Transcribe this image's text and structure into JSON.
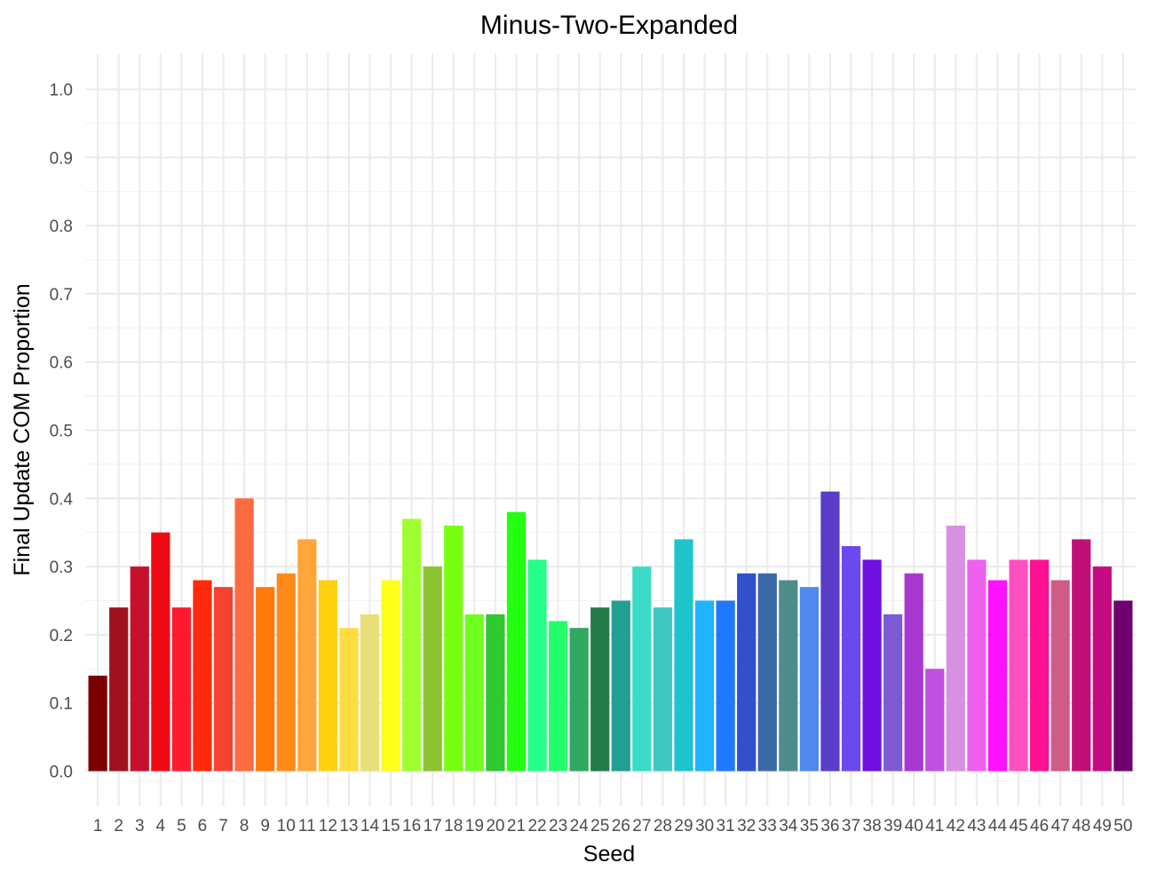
{
  "chart_data": {
    "type": "bar",
    "title": "Minus-Two-Expanded",
    "xlabel": "Seed",
    "ylabel": "Final Update COM Proportion",
    "ylim": [
      -0.04,
      1.04
    ],
    "yticks": [
      "0.0",
      "0.1",
      "0.2",
      "0.3",
      "0.4",
      "0.5",
      "0.6",
      "0.7",
      "0.8",
      "0.9",
      "1.0"
    ],
    "grid": true,
    "legend": "none",
    "categories": [
      "1",
      "2",
      "3",
      "4",
      "5",
      "6",
      "7",
      "8",
      "9",
      "10",
      "11",
      "12",
      "13",
      "14",
      "15",
      "16",
      "17",
      "18",
      "19",
      "20",
      "21",
      "22",
      "23",
      "24",
      "25",
      "26",
      "27",
      "28",
      "29",
      "30",
      "31",
      "32",
      "33",
      "34",
      "35",
      "36",
      "37",
      "38",
      "39",
      "40",
      "41",
      "42",
      "43",
      "44",
      "45",
      "46",
      "47",
      "48",
      "49",
      "50"
    ],
    "values": [
      0.14,
      0.24,
      0.3,
      0.35,
      0.24,
      0.28,
      0.27,
      0.4,
      0.27,
      0.29,
      0.34,
      0.28,
      0.21,
      0.23,
      0.28,
      0.37,
      0.3,
      0.36,
      0.23,
      0.23,
      0.38,
      0.31,
      0.22,
      0.21,
      0.24,
      0.25,
      0.3,
      0.24,
      0.34,
      0.25,
      0.25,
      0.29,
      0.29,
      0.28,
      0.27,
      0.41,
      0.33,
      0.31,
      0.23,
      0.29,
      0.15,
      0.36,
      0.31,
      0.28,
      0.31,
      0.31,
      0.28,
      0.34,
      0.3,
      0.25
    ],
    "colors": [
      "#7a0000",
      "#a0111f",
      "#c8102e",
      "#f00a14",
      "#ff1a2e",
      "#ff2a0a",
      "#f74230",
      "#ff6a40",
      "#ff7a0a",
      "#ff8a1a",
      "#ffa53a",
      "#ffd10f",
      "#ffdc40",
      "#eae07a",
      "#ffff1a",
      "#a0ff30",
      "#8cc431",
      "#78ff10",
      "#6fff20",
      "#30c830",
      "#22ff10",
      "#24ff8a",
      "#22ff6a",
      "#30a860",
      "#257a4a",
      "#20a090",
      "#3adcc8",
      "#40c8c0",
      "#1ec4cc",
      "#1eb4ff",
      "#2078ff",
      "#3050cc",
      "#3a68a8",
      "#4e8c8c",
      "#5088ee",
      "#5a3cc8",
      "#6a4aee",
      "#7010e0",
      "#7c5ad4",
      "#a838d0",
      "#c050e0",
      "#d890e0",
      "#ee60ee",
      "#ff10ff",
      "#ff50c0",
      "#ff1090",
      "#d05a88",
      "#c01078",
      "#c40a80",
      "#700070"
    ]
  }
}
